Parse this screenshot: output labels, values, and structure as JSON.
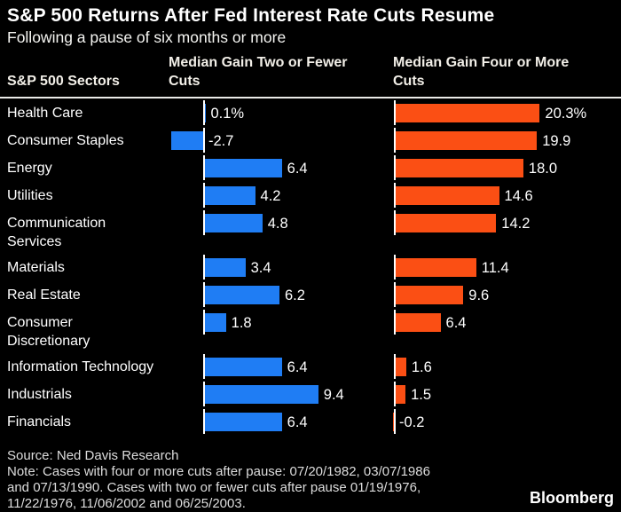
{
  "title": "S&P 500 Returns After Fed Interest Rate Cuts Resume",
  "subtitle": "Following a pause of six months or more",
  "columns": {
    "sectors": "S&P 500 Sectors",
    "median_two_lines": [
      "Median Gain Two or Fewer",
      "Cuts"
    ],
    "median_four_lines": [
      "Median Gain Four or More",
      "Cuts"
    ]
  },
  "colors": {
    "blue": "#1f7df4",
    "orange": "#fb4f14",
    "background": "#000000",
    "text": "#ffffff"
  },
  "rows": [
    {
      "label_lines": [
        "Health Care"
      ],
      "two": 0.1,
      "two_label": "0.1%",
      "four": 20.3,
      "four_label": "20.3%"
    },
    {
      "label_lines": [
        "Consumer Staples"
      ],
      "two": -2.7,
      "two_label": "-2.7",
      "four": 19.9,
      "four_label": "19.9"
    },
    {
      "label_lines": [
        "Energy"
      ],
      "two": 6.4,
      "two_label": "6.4",
      "four": 18.0,
      "four_label": "18.0"
    },
    {
      "label_lines": [
        "Utilities"
      ],
      "two": 4.2,
      "two_label": "4.2",
      "four": 14.6,
      "four_label": "14.6"
    },
    {
      "label_lines": [
        "Communication",
        "Services"
      ],
      "two": 4.8,
      "two_label": "4.8",
      "four": 14.2,
      "four_label": "14.2"
    },
    {
      "label_lines": [
        "Materials"
      ],
      "two": 3.4,
      "two_label": "3.4",
      "four": 11.4,
      "four_label": "11.4"
    },
    {
      "label_lines": [
        "Real Estate"
      ],
      "two": 6.2,
      "two_label": "6.2",
      "four": 9.6,
      "four_label": "9.6"
    },
    {
      "label_lines": [
        "Consumer",
        "Discretionary"
      ],
      "two": 1.8,
      "two_label": "1.8",
      "four": 6.4,
      "four_label": "6.4"
    },
    {
      "label_lines": [
        "Information Technology"
      ],
      "two": 6.4,
      "two_label": "6.4",
      "four": 1.6,
      "four_label": "1.6"
    },
    {
      "label_lines": [
        "Industrials"
      ],
      "two": 9.4,
      "two_label": "9.4",
      "four": 1.5,
      "four_label": "1.5"
    },
    {
      "label_lines": [
        "Financials"
      ],
      "two": 6.4,
      "two_label": "6.4",
      "four": -0.2,
      "four_label": "-0.2"
    }
  ],
  "chart_data": {
    "type": "bar",
    "orientation": "horizontal",
    "title": "S&P 500 Returns After Fed Interest Rate Cuts Resume",
    "subtitle": "Following a pause of six months or more",
    "categories": [
      "Health Care",
      "Consumer Staples",
      "Energy",
      "Utilities",
      "Communication Services",
      "Materials",
      "Real Estate",
      "Consumer Discretionary",
      "Information Technology",
      "Industrials",
      "Financials"
    ],
    "series": [
      {
        "name": "Median Gain Two or Fewer Cuts",
        "color": "#1f7df4",
        "values": [
          0.1,
          -2.7,
          6.4,
          4.2,
          4.8,
          3.4,
          6.2,
          1.8,
          6.4,
          9.4,
          6.4
        ]
      },
      {
        "name": "Median Gain Four or More Cuts",
        "color": "#fb4f14",
        "values": [
          20.3,
          19.9,
          18.0,
          14.6,
          14.2,
          11.4,
          9.6,
          6.4,
          1.6,
          1.5,
          -0.2
        ]
      }
    ],
    "value_unit": "percent",
    "data_labels_shown": true,
    "grid": false,
    "legend_position": "column headers above each panel"
  },
  "footer": {
    "source": "Source: Ned Davis Research",
    "note_lines": [
      "Note: Cases with four or more cuts after pause: 07/20/1982, 03/07/1986",
      "and 07/13/1990. Cases with two or fewer cuts after pause 01/19/1976,",
      "11/22/1976, 11/06/2002 and 06/25/2003."
    ],
    "brand": "Bloomberg"
  }
}
